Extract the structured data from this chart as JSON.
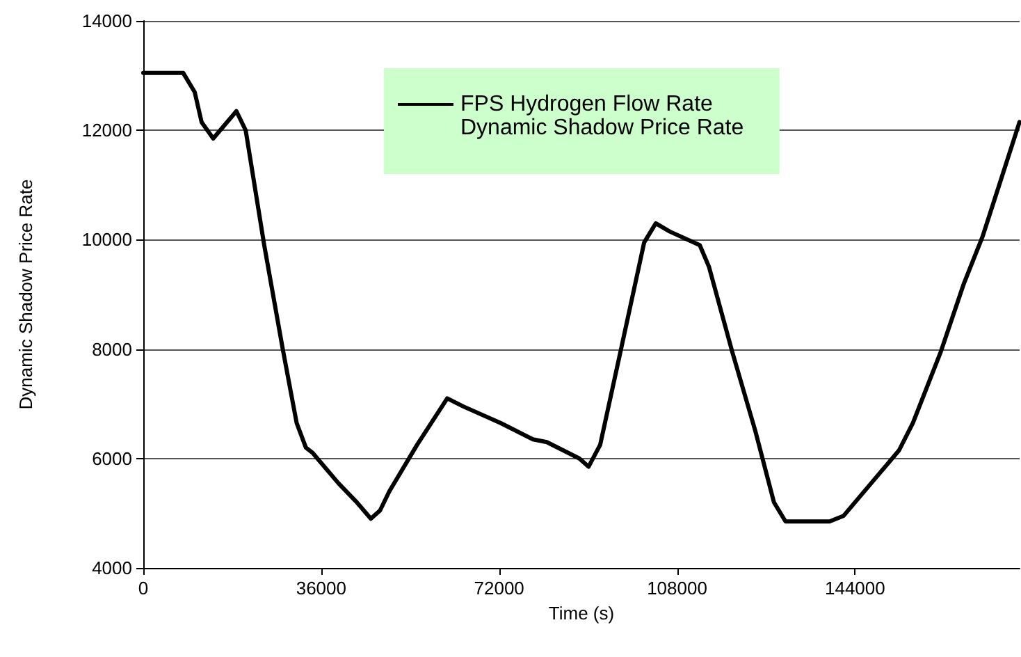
{
  "chart_data": {
    "type": "line",
    "xlabel": "Time (s)",
    "ylabel": "Dynamic Shadow Price Rate",
    "xlim": [
      0,
      177300
    ],
    "xticks": [
      0,
      36000,
      72000,
      108000,
      144000
    ],
    "ylim": [
      4000,
      14000
    ],
    "yticks": [
      4000,
      6000,
      8000,
      10000,
      12000,
      14000
    ],
    "grid": "y",
    "legend": "top",
    "marker": "none",
    "line_style": "solid",
    "annotations": [
      "Dynamic Shadow Price Rate"
    ],
    "series": [
      {
        "name": "FPS Hydrogen Flow Rate",
        "color": "#000000",
        "x": [
          0,
          8060,
          10400,
          11800,
          14150,
          18840,
          20720,
          24470,
          28220,
          31030,
          32900,
          34300,
          39460,
          43200,
          46040,
          47900,
          49780,
          55400,
          61500,
          64780,
          72280,
          78840,
          81650,
          88220,
          90090,
          92440,
          96660,
          101340,
          103690,
          106500,
          112590,
          114470,
          119160,
          123840,
          127600,
          129940,
          138850,
          141660,
          147290,
          152910,
          155720,
          161350,
          166030,
          169780,
          177280
        ],
        "values": [
          13050,
          13050,
          12700,
          12150,
          11850,
          12350,
          12000,
          9900,
          8000,
          6650,
          6200,
          6100,
          5550,
          5200,
          4900,
          5050,
          5400,
          6250,
          7100,
          6950,
          6650,
          6350,
          6300,
          6000,
          5850,
          6250,
          8000,
          9950,
          10300,
          10150,
          9900,
          9500,
          7950,
          6500,
          5200,
          4850,
          4850,
          4950,
          5550,
          6150,
          6650,
          7950,
          9200,
          10050,
          12150
        ]
      }
    ]
  }
}
